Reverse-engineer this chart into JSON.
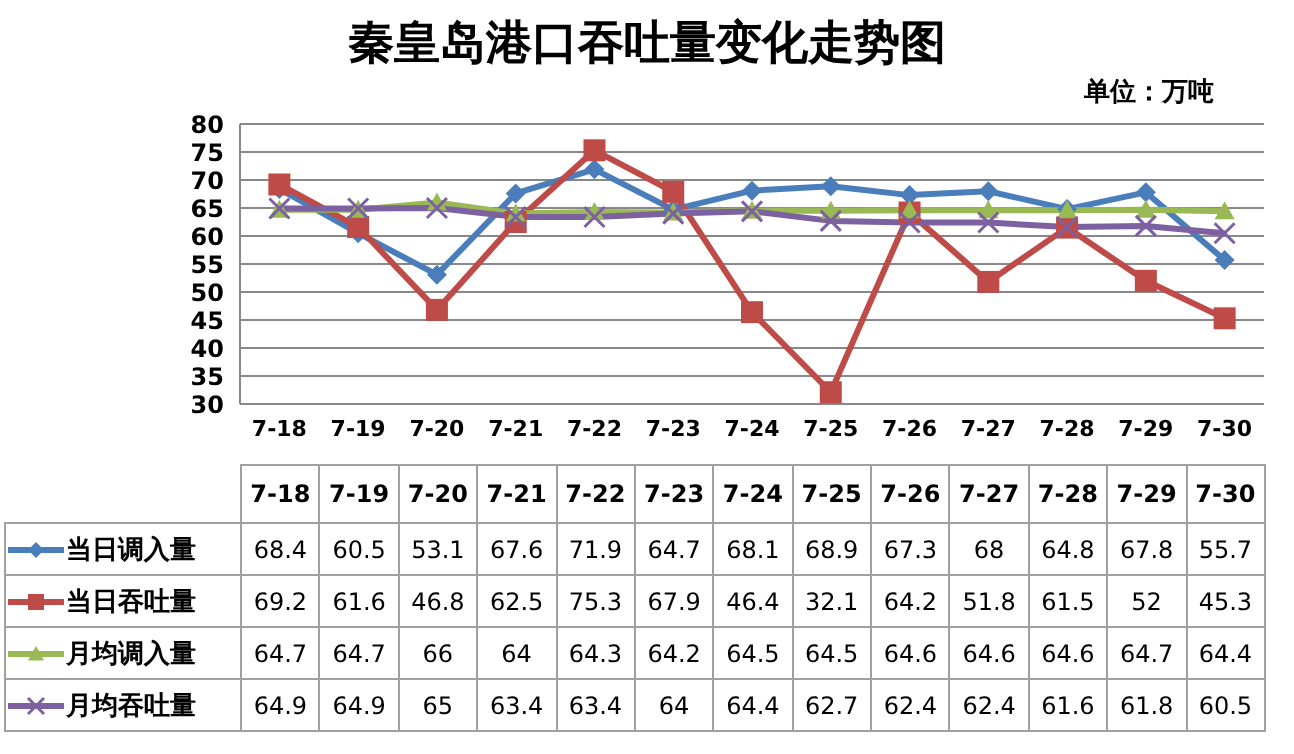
{
  "chart_data": {
    "type": "line",
    "title": "秦皇岛港口吞吐量变化走势图",
    "annotations": [
      "单位：万吨"
    ],
    "categories": [
      "7-18",
      "7-19",
      "7-20",
      "7-21",
      "7-22",
      "7-23",
      "7-24",
      "7-25",
      "7-26",
      "7-27",
      "7-28",
      "7-29",
      "7-30"
    ],
    "series": [
      {
        "name": "当日调入量",
        "color": "#4a7ebb",
        "marker": "diamond",
        "values": [
          68.4,
          60.5,
          53.1,
          67.6,
          71.9,
          64.7,
          68.1,
          68.9,
          67.3,
          68,
          64.8,
          67.8,
          55.7
        ]
      },
      {
        "name": "当日吞吐量",
        "color": "#be4b48",
        "marker": "square",
        "values": [
          69.2,
          61.6,
          46.8,
          62.5,
          75.3,
          67.9,
          46.4,
          32.1,
          64.2,
          51.8,
          61.5,
          52,
          45.3
        ]
      },
      {
        "name": "月均调入量",
        "color": "#98b954",
        "marker": "triangle",
        "values": [
          64.7,
          64.7,
          66,
          64,
          64.3,
          64.2,
          64.5,
          64.5,
          64.6,
          64.6,
          64.6,
          64.7,
          64.4
        ]
      },
      {
        "name": "月均吞吐量",
        "color": "#7d60a0",
        "marker": "cross",
        "values": [
          64.9,
          64.9,
          65,
          63.4,
          63.4,
          64,
          64.4,
          62.7,
          62.4,
          62.4,
          61.6,
          61.8,
          60.5
        ]
      }
    ],
    "ylim": [
      30,
      80
    ],
    "yticks": [
      30,
      35,
      40,
      45,
      50,
      55,
      60,
      65,
      70,
      75,
      80
    ],
    "grid": "y",
    "legend": "bottom",
    "data_labels": true
  }
}
